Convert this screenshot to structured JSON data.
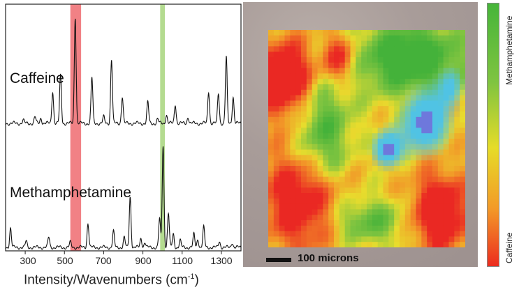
{
  "chart_data": {
    "type": "line",
    "xlabel": "Intensity/Wavenumbers (cm",
    "xlabel_sup": "-1",
    "xlim": [
      200,
      1400
    ],
    "x_ticks": [
      300,
      500,
      700,
      900,
      1100,
      1300
    ],
    "grid": false,
    "series": [
      {
        "name": "Caffeine",
        "color": "#111111",
        "peaks": [
          [
            290,
            0.03
          ],
          [
            350,
            0.06
          ],
          [
            380,
            0.05
          ],
          [
            440,
            0.3
          ],
          [
            480,
            0.45
          ],
          [
            555,
            1.0
          ],
          [
            640,
            0.43
          ],
          [
            700,
            0.06
          ],
          [
            740,
            0.6
          ],
          [
            795,
            0.25
          ],
          [
            925,
            0.2
          ],
          [
            975,
            0.04
          ],
          [
            1020,
            0.08
          ],
          [
            1065,
            0.18
          ],
          [
            1130,
            0.06
          ],
          [
            1235,
            0.3
          ],
          [
            1285,
            0.28
          ],
          [
            1325,
            0.62
          ],
          [
            1360,
            0.25
          ]
        ]
      },
      {
        "name": "Methamphetamine",
        "color": "#111111",
        "peaks": [
          [
            225,
            0.19
          ],
          [
            305,
            0.06
          ],
          [
            420,
            0.1
          ],
          [
            530,
            0.05
          ],
          [
            620,
            0.24
          ],
          [
            750,
            0.16
          ],
          [
            805,
            0.1
          ],
          [
            835,
            0.5
          ],
          [
            890,
            0.09
          ],
          [
            910,
            0.05
          ],
          [
            985,
            0.28
          ],
          [
            1003,
            1.0
          ],
          [
            1030,
            0.34
          ],
          [
            1055,
            0.13
          ],
          [
            1090,
            0.07
          ],
          [
            1160,
            0.13
          ],
          [
            1180,
            0.08
          ],
          [
            1210,
            0.2
          ],
          [
            1290,
            0.06
          ],
          [
            1355,
            0.05
          ]
        ]
      }
    ],
    "highlight_bands": [
      {
        "x_min": 530,
        "x_max": 585,
        "color": "#ee6b70"
      },
      {
        "x_min": 988,
        "x_max": 1012,
        "color": "#a7d57d"
      }
    ]
  },
  "map": {
    "scale_label": "100 microns",
    "colorbar_top_label": "Methamphetamine",
    "colorbar_bottom_label": "Caffeine",
    "colors": {
      "methamphetamine": "#46b53a",
      "caffeine": "#ec2c1f",
      "other": "#4fc6e3"
    }
  }
}
